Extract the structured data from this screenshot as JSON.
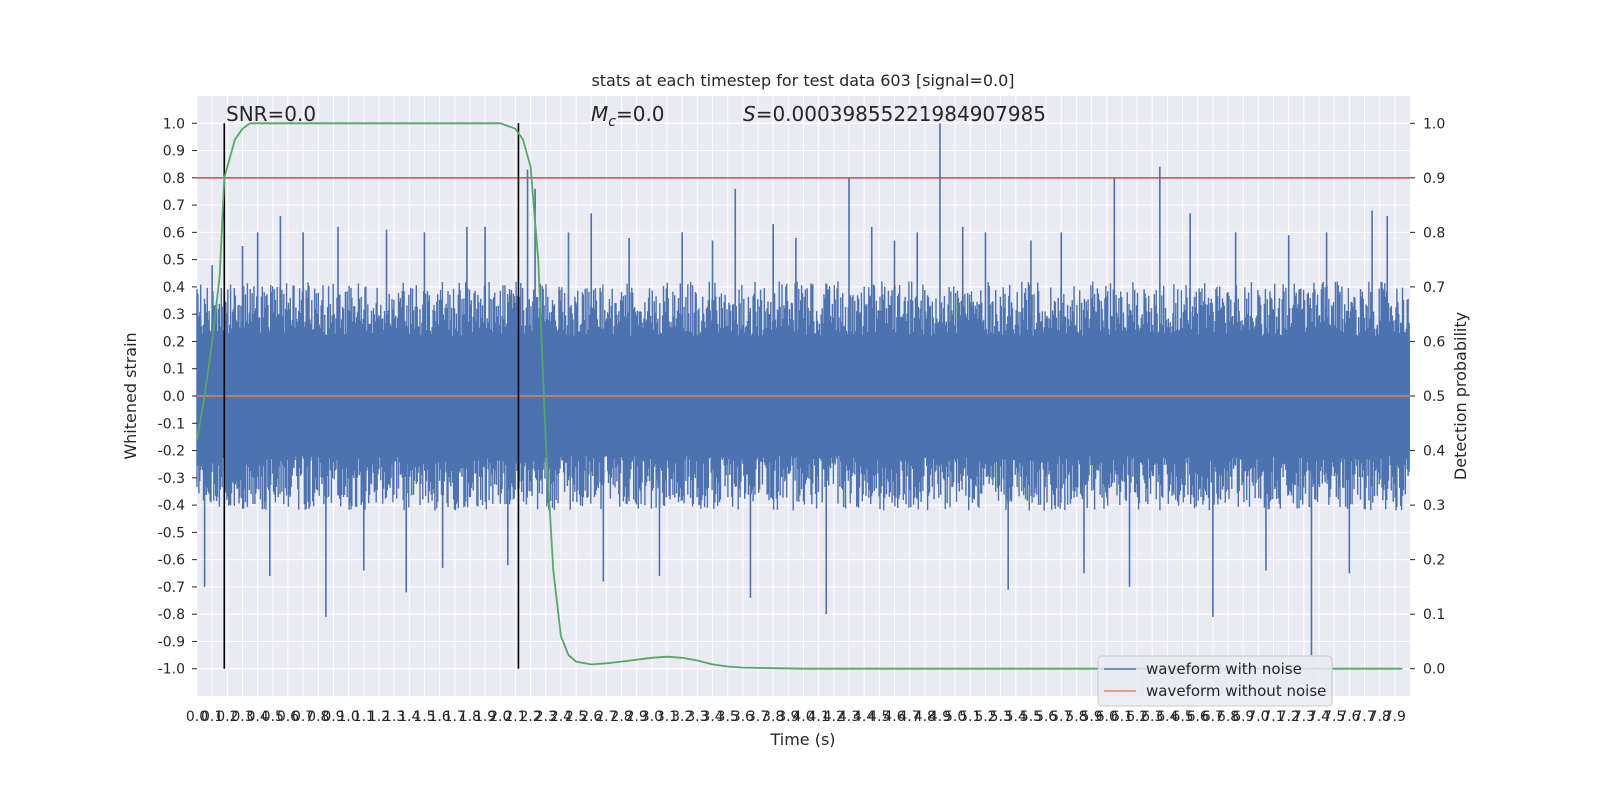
{
  "chart_data": {
    "type": "line",
    "title": "stats at each timestep for test data 603 [signal=0.0]",
    "xlabel": "Time (s)",
    "ylabel": "Whitened strain",
    "ylabel_right": "Detection probability",
    "xlim": [
      0.0,
      8.0
    ],
    "ylim": [
      -1.1,
      1.1
    ],
    "ylim_right": [
      -0.05,
      1.05
    ],
    "grid": true,
    "x_ticks": [
      "0.0",
      "0.1",
      "0.2",
      "0.3",
      "0.4",
      "0.5",
      "0.6",
      "0.7",
      "0.8",
      "0.9",
      "1.0",
      "1.1",
      "1.2",
      "1.3",
      "1.4",
      "1.5",
      "1.6",
      "1.7",
      "1.8",
      "1.9",
      "2.0",
      "2.1",
      "2.2",
      "2.3",
      "2.4",
      "2.5",
      "2.6",
      "2.7",
      "2.8",
      "2.9",
      "3.0",
      "3.1",
      "3.2",
      "3.3",
      "3.4",
      "3.5",
      "3.6",
      "3.7",
      "3.8",
      "3.9",
      "4.0",
      "4.1",
      "4.2",
      "4.3",
      "4.4",
      "4.5",
      "4.6",
      "4.7",
      "4.8",
      "4.9",
      "5.0",
      "5.1",
      "5.2",
      "5.3",
      "5.4",
      "5.5",
      "5.6",
      "5.7",
      "5.8",
      "5.9",
      "6.0",
      "6.1",
      "6.2",
      "6.3",
      "6.4",
      "6.5",
      "6.6",
      "6.7",
      "6.8",
      "6.9",
      "7.0",
      "7.1",
      "7.2",
      "7.3",
      "7.4",
      "7.5",
      "7.6",
      "7.7",
      "7.8",
      "7.9"
    ],
    "y_ticks_left": [
      "1.0",
      "0.9",
      "0.8",
      "0.7",
      "0.6",
      "0.5",
      "0.4",
      "0.3",
      "0.2",
      "0.1",
      "0.0",
      "-0.1",
      "-0.2",
      "-0.3",
      "-0.4",
      "-0.5",
      "-0.6",
      "-0.7",
      "-0.8",
      "-0.9",
      "-1.0"
    ],
    "y_ticks_right": [
      "1.0",
      "0.9",
      "0.8",
      "0.7",
      "0.6",
      "0.5",
      "0.4",
      "0.3",
      "0.2",
      "0.1",
      "0.0"
    ],
    "annotations": {
      "snr": "SNR=0.0",
      "mc_symbol": "M",
      "mc_sub": "c",
      "mc_value": "=0.0",
      "s_symbol": "S",
      "s_value": "=0.00039855221984907985"
    },
    "series": [
      {
        "name": "waveform with noise",
        "color": "#4c72b0",
        "style": "noise envelope approx. ±0.35 with spikes up to 1.0"
      },
      {
        "name": "waveform without noise",
        "color": "#dd8452",
        "values_constant": 0.0
      }
    ],
    "noise_spikes": {
      "x": [
        0.05,
        0.1,
        0.3,
        0.4,
        0.48,
        0.55,
        0.7,
        0.85,
        0.93,
        1.1,
        1.25,
        1.38,
        1.5,
        1.62,
        1.78,
        1.9,
        2.05,
        2.18,
        2.23,
        2.45,
        2.6,
        2.68,
        2.85,
        3.05,
        3.2,
        3.4,
        3.55,
        3.65,
        3.8,
        3.95,
        4.15,
        4.3,
        4.45,
        4.6,
        4.75,
        4.9,
        5.05,
        5.2,
        5.35,
        5.5,
        5.7,
        5.85,
        6.05,
        6.15,
        6.35,
        6.55,
        6.7,
        6.85,
        7.05,
        7.2,
        7.35,
        7.45,
        7.6,
        7.75,
        7.85
      ],
      "y": [
        -0.7,
        0.48,
        0.55,
        0.6,
        -0.66,
        0.66,
        0.6,
        -0.81,
        0.62,
        -0.64,
        0.61,
        -0.72,
        0.6,
        -0.63,
        0.62,
        0.62,
        -0.62,
        0.83,
        0.76,
        0.6,
        0.67,
        -0.68,
        0.58,
        -0.66,
        0.6,
        0.57,
        0.76,
        -0.74,
        0.63,
        0.58,
        -0.8,
        0.8,
        0.62,
        0.57,
        0.6,
        1.0,
        0.62,
        0.6,
        -0.71,
        0.57,
        0.6,
        -0.65,
        0.8,
        -0.7,
        0.84,
        0.67,
        -0.81,
        0.6,
        -0.64,
        0.59,
        -0.95,
        0.6,
        -0.65,
        0.68,
        0.66
      ]
    },
    "detection_probability": {
      "color": "#55a868",
      "x": [
        0.0,
        0.05,
        0.1,
        0.15,
        0.18,
        0.25,
        0.3,
        0.35,
        0.4,
        0.45,
        0.5,
        0.6,
        0.8,
        1.0,
        1.5,
        1.8,
        2.0,
        2.0,
        2.05,
        2.1,
        2.15,
        2.2,
        2.25,
        2.3,
        2.35,
        2.4,
        2.45,
        2.5,
        2.6,
        2.7,
        2.8,
        3.0,
        3.1,
        3.2,
        3.3,
        3.4,
        3.5,
        3.6,
        3.8,
        4.0,
        4.5,
        5.0,
        6.0,
        7.0,
        7.95
      ],
      "y": [
        0.42,
        0.5,
        0.6,
        0.72,
        0.9,
        0.97,
        0.99,
        1.0,
        1.0,
        1.0,
        1.0,
        1.0,
        1.0,
        1.0,
        1.0,
        1.0,
        1.0,
        1.0,
        0.995,
        0.99,
        0.97,
        0.92,
        0.75,
        0.42,
        0.18,
        0.06,
        0.025,
        0.013,
        0.008,
        0.01,
        0.013,
        0.02,
        0.022,
        0.02,
        0.015,
        0.008,
        0.004,
        0.002,
        0.001,
        0.0,
        0.0,
        0.0,
        0.0,
        0.0,
        0.0
      ]
    },
    "threshold_line": {
      "y_right": 0.9,
      "color": "#c44e52"
    },
    "vertical_markers_x": [
      0.18,
      2.12
    ],
    "legend": {
      "placement": "lower-right",
      "entries": [
        {
          "label": "waveform with noise",
          "color": "#4c72b0"
        },
        {
          "label": "waveform without noise",
          "color": "#dd8452"
        }
      ]
    }
  }
}
